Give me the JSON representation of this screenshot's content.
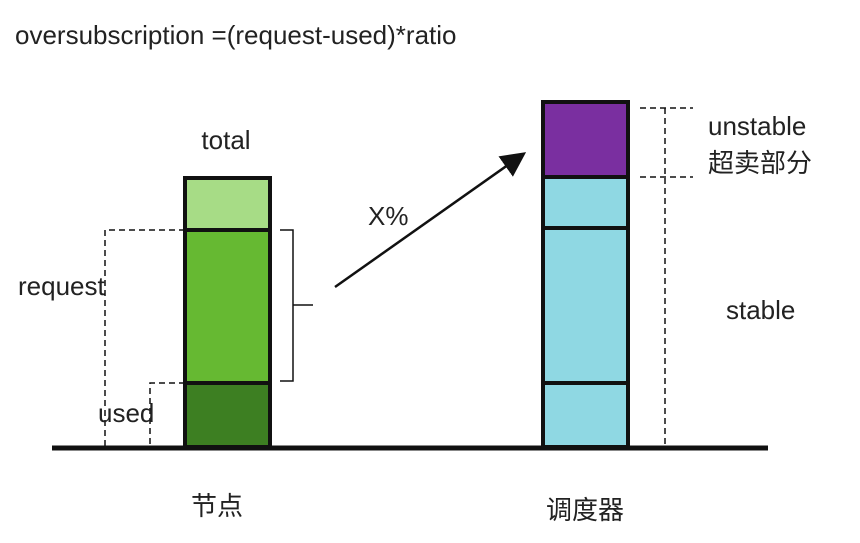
{
  "title": "oversubscription =(request-used)*ratio",
  "node": {
    "total": "total",
    "request": "request",
    "used": "used",
    "label": "节点"
  },
  "arrow": {
    "label": "X%"
  },
  "scheduler": {
    "unstable": "unstable",
    "oversold": "超卖部分",
    "stable": "stable",
    "label": "调度器"
  }
}
